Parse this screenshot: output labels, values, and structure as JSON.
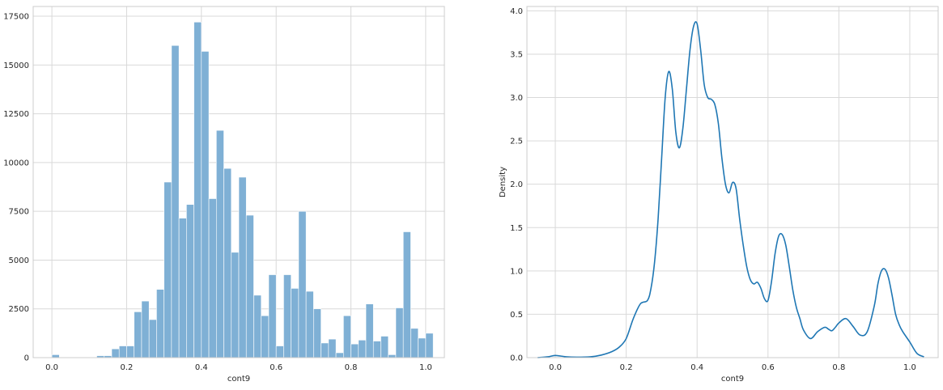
{
  "chart_data": [
    {
      "type": "bar",
      "subtype": "histogram",
      "xlabel": "cont9",
      "ylabel": "",
      "xlim": [
        -0.05,
        1.05
      ],
      "ylim": [
        0,
        18000
      ],
      "grid": true,
      "bar_color": "#7fb0d5",
      "x_ticks": [
        {
          "value": 0.0,
          "label": "0.0"
        },
        {
          "value": 0.2,
          "label": "0.2"
        },
        {
          "value": 0.4,
          "label": "0.4"
        },
        {
          "value": 0.6,
          "label": "0.6"
        },
        {
          "value": 0.8,
          "label": "0.8"
        },
        {
          "value": 1.0,
          "label": "1.0"
        }
      ],
      "y_ticks": [
        {
          "value": 0,
          "label": "0"
        },
        {
          "value": 2500,
          "label": "2500"
        },
        {
          "value": 5000,
          "label": "5000"
        },
        {
          "value": 7500,
          "label": "7500"
        },
        {
          "value": 10000,
          "label": "10000"
        },
        {
          "value": 12500,
          "label": "12500"
        },
        {
          "value": 15000,
          "label": "15000"
        },
        {
          "value": 17500,
          "label": "17500"
        }
      ],
      "bin_start": 0.0,
      "bin_width": 0.02,
      "values": [
        150,
        0,
        0,
        0,
        0,
        0,
        100,
        100,
        450,
        600,
        600,
        2350,
        2900,
        1950,
        3500,
        9000,
        16000,
        7150,
        7850,
        17200,
        15700,
        8150,
        11650,
        9700,
        5400,
        9250,
        7300,
        3200,
        2150,
        4250,
        600,
        4250,
        3550,
        7500,
        3400,
        2500,
        750,
        950,
        250,
        2150,
        700,
        900,
        2750,
        850,
        1100,
        150,
        2550,
        6450,
        1500,
        1000,
        1250
      ]
    },
    {
      "type": "line",
      "subtype": "kde",
      "xlabel": "cont9",
      "ylabel": "Density",
      "xlim": [
        -0.08,
        1.08
      ],
      "ylim": [
        0,
        4.05
      ],
      "grid": true,
      "line_color": "#1f77b4",
      "x_ticks": [
        {
          "value": 0.0,
          "label": "0.0"
        },
        {
          "value": 0.2,
          "label": "0.2"
        },
        {
          "value": 0.4,
          "label": "0.4"
        },
        {
          "value": 0.6,
          "label": "0.6"
        },
        {
          "value": 0.8,
          "label": "0.8"
        },
        {
          "value": 1.0,
          "label": "1.0"
        }
      ],
      "y_ticks": [
        {
          "value": 0.0,
          "label": "0.0"
        },
        {
          "value": 0.5,
          "label": "0.5"
        },
        {
          "value": 1.0,
          "label": "1.0"
        },
        {
          "value": 1.5,
          "label": "1.5"
        },
        {
          "value": 2.0,
          "label": "2.0"
        },
        {
          "value": 2.5,
          "label": "2.5"
        },
        {
          "value": 3.0,
          "label": "3.0"
        },
        {
          "value": 3.5,
          "label": "3.5"
        },
        {
          "value": 4.0,
          "label": "4.0"
        }
      ],
      "x": [
        -0.05,
        -0.02,
        0.0,
        0.03,
        0.06,
        0.1,
        0.13,
        0.16,
        0.18,
        0.2,
        0.22,
        0.24,
        0.26,
        0.27,
        0.28,
        0.29,
        0.3,
        0.31,
        0.32,
        0.33,
        0.34,
        0.35,
        0.36,
        0.37,
        0.38,
        0.39,
        0.4,
        0.41,
        0.42,
        0.43,
        0.44,
        0.45,
        0.46,
        0.47,
        0.48,
        0.49,
        0.5,
        0.51,
        0.52,
        0.53,
        0.54,
        0.55,
        0.56,
        0.57,
        0.58,
        0.59,
        0.6,
        0.61,
        0.62,
        0.63,
        0.64,
        0.65,
        0.66,
        0.67,
        0.68,
        0.69,
        0.7,
        0.72,
        0.74,
        0.76,
        0.77,
        0.78,
        0.79,
        0.8,
        0.82,
        0.84,
        0.86,
        0.88,
        0.9,
        0.91,
        0.92,
        0.93,
        0.94,
        0.95,
        0.96,
        0.97,
        0.98,
        1.0,
        1.02,
        1.04
      ],
      "y": [
        0.0,
        0.01,
        0.025,
        0.01,
        0.005,
        0.01,
        0.03,
        0.07,
        0.12,
        0.22,
        0.45,
        0.62,
        0.66,
        0.8,
        1.1,
        1.6,
        2.3,
        3.0,
        3.3,
        3.1,
        2.6,
        2.42,
        2.65,
        3.1,
        3.55,
        3.82,
        3.85,
        3.55,
        3.15,
        3.0,
        2.98,
        2.92,
        2.7,
        2.3,
        2.0,
        1.9,
        2.02,
        1.95,
        1.6,
        1.3,
        1.05,
        0.9,
        0.85,
        0.87,
        0.8,
        0.68,
        0.66,
        0.88,
        1.2,
        1.4,
        1.42,
        1.3,
        1.05,
        0.78,
        0.58,
        0.45,
        0.32,
        0.22,
        0.3,
        0.35,
        0.33,
        0.31,
        0.35,
        0.4,
        0.45,
        0.36,
        0.26,
        0.3,
        0.6,
        0.85,
        1.0,
        1.02,
        0.92,
        0.72,
        0.5,
        0.38,
        0.3,
        0.18,
        0.05,
        0.01
      ]
    }
  ]
}
